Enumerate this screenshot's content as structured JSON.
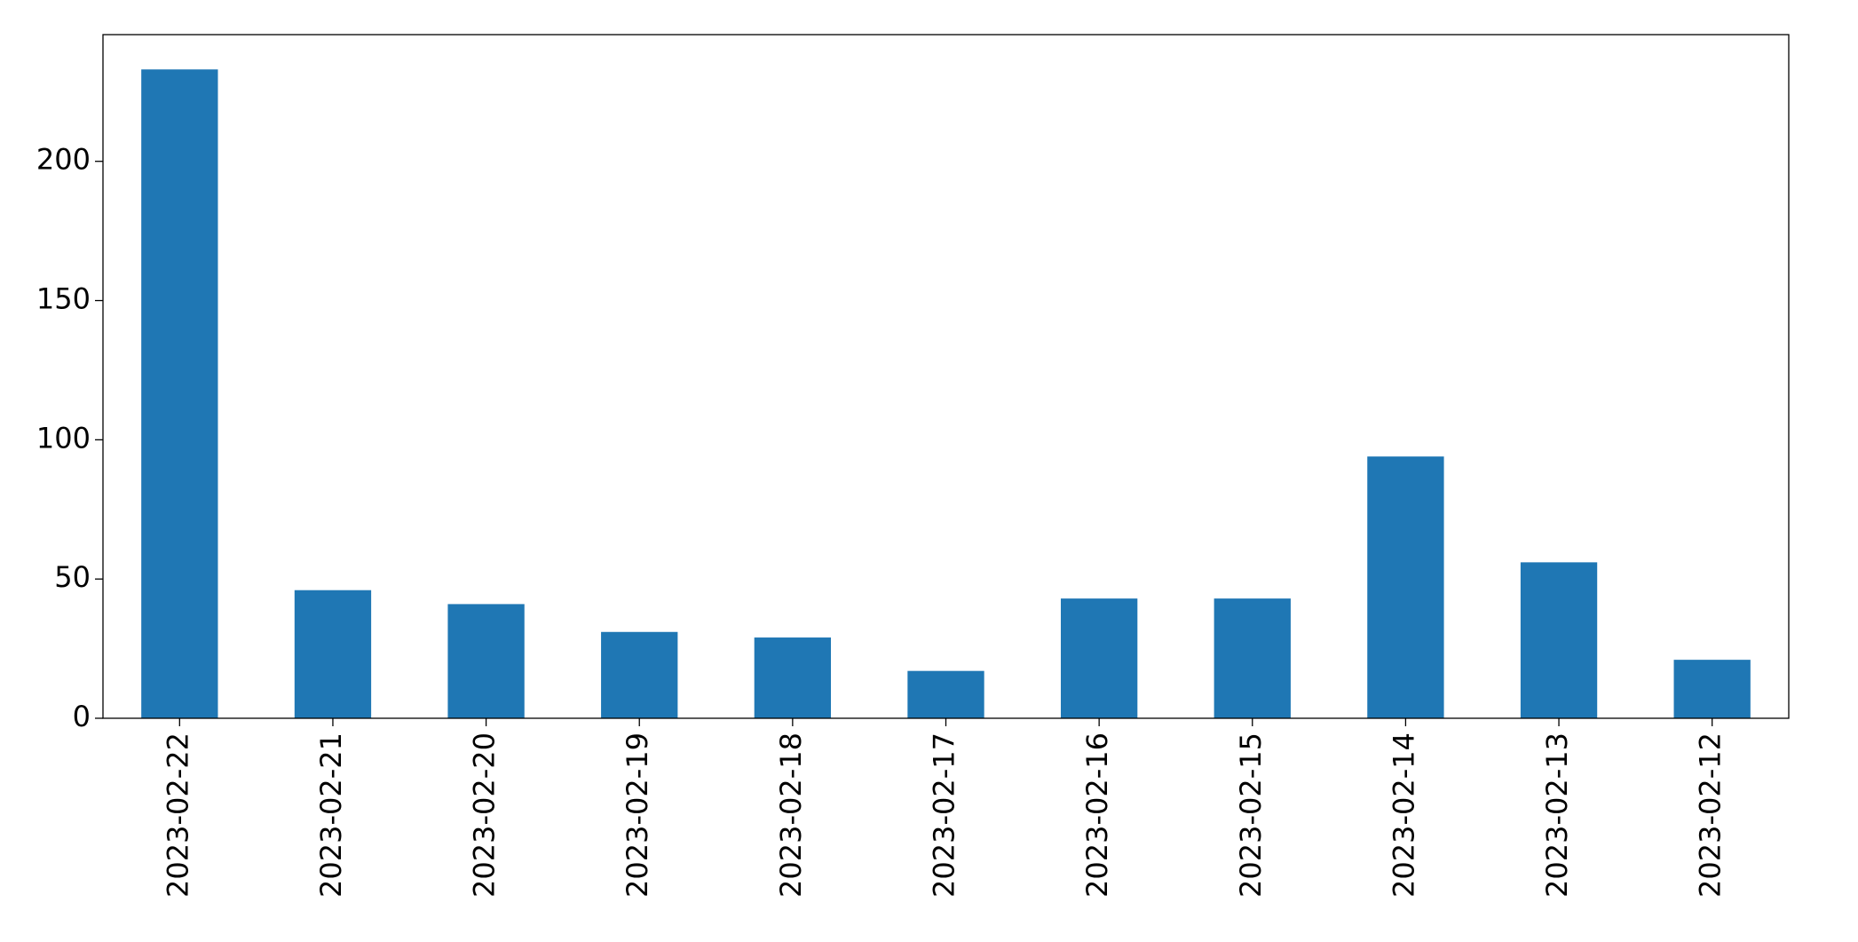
{
  "chart_data": {
    "type": "bar",
    "categories": [
      "2023-02-22",
      "2023-02-21",
      "2023-02-20",
      "2023-02-19",
      "2023-02-18",
      "2023-02-17",
      "2023-02-16",
      "2023-02-15",
      "2023-02-14",
      "2023-02-13",
      "2023-02-12"
    ],
    "values": [
      233,
      46,
      41,
      31,
      29,
      17,
      43,
      43,
      94,
      56,
      21
    ],
    "color": "#1f77b4",
    "ylim": [
      0,
      245.5
    ],
    "yticks": [
      0,
      50,
      100,
      150,
      200
    ],
    "grid": false
  }
}
